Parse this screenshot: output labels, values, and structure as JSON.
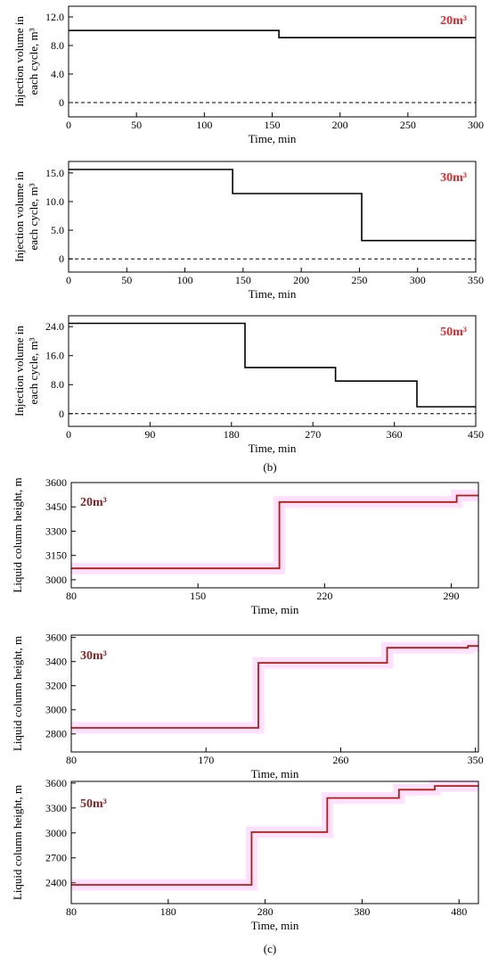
{
  "figure": {
    "panel_b_label": "(b)",
    "panel_c_label": "(c)"
  },
  "chart_data": [
    {
      "type": "line",
      "panel": "b",
      "tag": "20m³",
      "xlabel": "Time, min",
      "ylabel_lines": [
        "Injection volume in",
        "each cycle, m³"
      ],
      "xlim": [
        0,
        300
      ],
      "ylim": [
        -2,
        13.5
      ],
      "x_ticks": [
        0,
        50,
        100,
        150,
        200,
        250,
        300
      ],
      "x_tick_labels": [
        "0",
        "50",
        "100",
        "150",
        "200",
        "250",
        "300"
      ],
      "y_ticks": [
        0,
        4,
        8,
        12
      ],
      "y_tick_labels": [
        "0",
        "4.0",
        "8.0",
        "12.0"
      ],
      "zero_line_dashed": true,
      "tag_color": "#e8262a",
      "step_color": "#000000",
      "series": [
        {
          "x": [
            0,
            155,
            155,
            300
          ],
          "y": [
            10.1,
            10.1,
            9.1,
            9.1
          ]
        }
      ]
    },
    {
      "type": "line",
      "panel": "b",
      "tag": "30m³",
      "xlabel": "Time, min",
      "ylabel_lines": [
        "Injection volume in",
        "each cycle, m³"
      ],
      "xlim": [
        0,
        350
      ],
      "ylim": [
        -2.3,
        17
      ],
      "x_ticks": [
        0,
        50,
        100,
        150,
        200,
        250,
        300,
        350
      ],
      "x_tick_labels": [
        "0",
        "50",
        "100",
        "150",
        "200",
        "250",
        "300",
        "350"
      ],
      "y_ticks": [
        0,
        5,
        10,
        15
      ],
      "y_tick_labels": [
        "0",
        "5.0",
        "10.0",
        "15.0"
      ],
      "zero_line_dashed": true,
      "tag_color": "#e8262a",
      "step_color": "#000000",
      "series": [
        {
          "x": [
            0,
            141,
            141,
            252,
            252,
            350
          ],
          "y": [
            15.6,
            15.6,
            11.4,
            11.4,
            3.2,
            3.2
          ]
        }
      ]
    },
    {
      "type": "line",
      "panel": "b",
      "tag": "50m³",
      "xlabel": "Time, min",
      "ylabel_lines": [
        "Injection volume in",
        "each cycle, m³"
      ],
      "xlim": [
        0,
        450
      ],
      "ylim": [
        -3.5,
        27
      ],
      "x_ticks": [
        0,
        90,
        180,
        270,
        360,
        450
      ],
      "x_tick_labels": [
        "0",
        "90",
        "180",
        "270",
        "360",
        "450"
      ],
      "y_ticks": [
        0,
        8,
        16,
        24
      ],
      "y_tick_labels": [
        "0",
        "8.0",
        "16.0",
        "24.0"
      ],
      "zero_line_dashed": true,
      "tag_color": "#e8262a",
      "step_color": "#000000",
      "series": [
        {
          "x": [
            0,
            195,
            195,
            295,
            295,
            385,
            385,
            450
          ],
          "y": [
            24.9,
            24.9,
            12.7,
            12.7,
            9.0,
            9.0,
            1.9,
            1.9
          ]
        }
      ]
    },
    {
      "type": "line",
      "panel": "c",
      "tag": "20m³",
      "xlabel": "Time, min",
      "ylabel_lines": [
        "Liquid  column height, m"
      ],
      "xlim": [
        80,
        305
      ],
      "ylim": [
        2950,
        3600
      ],
      "x_ticks": [
        80,
        150,
        220,
        290
      ],
      "x_tick_labels": [
        "80",
        "150",
        "220",
        "290"
      ],
      "y_ticks": [
        3000,
        3150,
        3300,
        3450,
        3600
      ],
      "y_tick_labels": [
        "3000",
        "3150",
        "3300",
        "3450",
        "3600"
      ],
      "tag_color": "#8b2323",
      "step_color": "#b01e12",
      "glow_color": "#ff78ff",
      "series": [
        {
          "x": [
            80,
            195,
            195,
            293,
            293,
            305
          ],
          "y": [
            3070,
            3070,
            3480,
            3480,
            3520,
            3520
          ]
        }
      ]
    },
    {
      "type": "line",
      "panel": "c",
      "tag": "30m³",
      "xlabel": "Time, min",
      "ylabel_lines": [
        "Liquid  column height, m"
      ],
      "xlim": [
        80,
        352
      ],
      "ylim": [
        2650,
        3620
      ],
      "x_ticks": [
        80,
        170,
        260,
        350
      ],
      "x_tick_labels": [
        "80",
        "170",
        "260",
        "350"
      ],
      "y_ticks": [
        2800,
        3000,
        3200,
        3400,
        3600
      ],
      "y_tick_labels": [
        "2800",
        "3000",
        "3200",
        "3400",
        "3600"
      ],
      "tag_color": "#8b2323",
      "step_color": "#b01e12",
      "glow_color": "#ff78ff",
      "series": [
        {
          "x": [
            80,
            205,
            205,
            291,
            291,
            345,
            345,
            352
          ],
          "y": [
            2850,
            2850,
            3390,
            3390,
            3515,
            3515,
            3530,
            3530
          ]
        }
      ]
    },
    {
      "type": "line",
      "panel": "c",
      "tag": "50m³",
      "xlabel": "Time, min",
      "ylabel_lines": [
        "Liquid  column height, m"
      ],
      "xlim": [
        80,
        500
      ],
      "ylim": [
        2150,
        3620
      ],
      "x_ticks": [
        80,
        180,
        280,
        380,
        480
      ],
      "x_tick_labels": [
        "80",
        "180",
        "280",
        "380",
        "480"
      ],
      "y_ticks": [
        2400,
        2700,
        3000,
        3300,
        3600
      ],
      "y_tick_labels": [
        "2400",
        "2700",
        "3000",
        "3300",
        "3600"
      ],
      "tag_color": "#8b2323",
      "step_color": "#b01e12",
      "glow_color": "#ff78ff",
      "series": [
        {
          "x": [
            80,
            266,
            266,
            344,
            344,
            418,
            418,
            455,
            455,
            500
          ],
          "y": [
            2375,
            2375,
            3010,
            3010,
            3420,
            3420,
            3520,
            3520,
            3565,
            3565
          ]
        }
      ]
    }
  ]
}
